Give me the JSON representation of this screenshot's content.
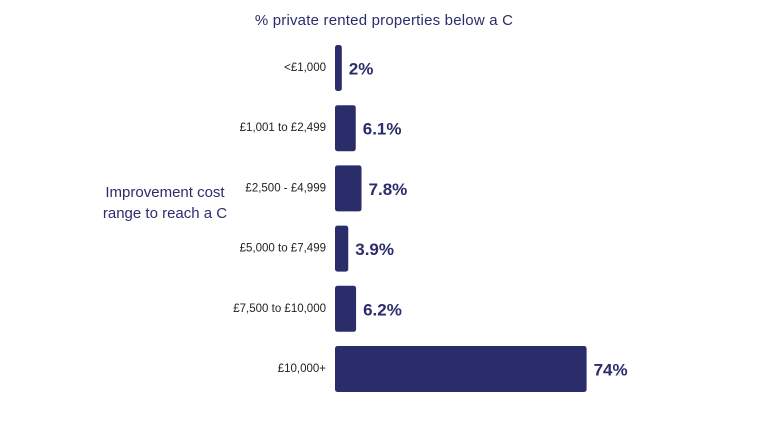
{
  "colors": {
    "bar": "#2b2d6b",
    "text": "#2b2d6b",
    "category_text": "#222222",
    "background": "#ffffff"
  },
  "chart_data": {
    "type": "bar",
    "orientation": "horizontal",
    "title": "% private rented properties below a C",
    "ylabel": "Improvement cost range to reach a C",
    "xlabel": "",
    "categories": [
      "<£1,000",
      "£1,001 to £2,499",
      "£2,500 - £4,999",
      "£5,000 to £7,499",
      "£7,500 to £10,000",
      "£10,000+"
    ],
    "values": [
      2,
      6.1,
      7.8,
      3.9,
      6.2,
      74
    ],
    "value_labels": [
      "2%",
      "6.1%",
      "7.8%",
      "3.9%",
      "6.2%",
      "74%"
    ],
    "xlim": [
      0,
      100
    ],
    "grid": false,
    "legend": "none"
  }
}
